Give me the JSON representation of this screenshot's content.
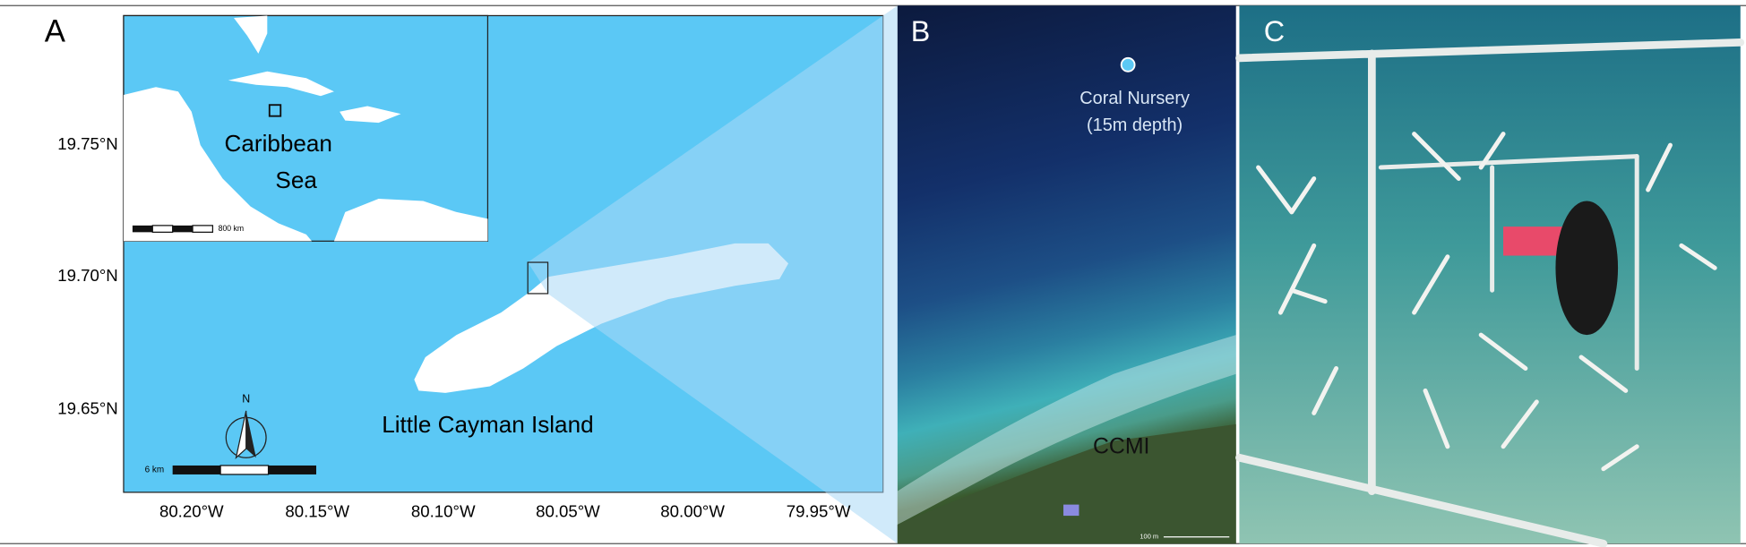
{
  "panels": [
    {
      "label": "A",
      "latitude_labels": [
        "19.75°N",
        "19.70°N",
        "19.65°N"
      ],
      "longitude_labels": [
        "80.20°W",
        "80.15°W",
        "80.10°W",
        "80.05°W",
        "80.00°W",
        "79.95°W"
      ],
      "place_label": "Little Cayman Island",
      "north_label": "N",
      "scale_label": "6 km",
      "inset": {
        "labels": [
          "Caribbean",
          "Sea"
        ],
        "scale_label": "800 km"
      }
    },
    {
      "label": "B",
      "labels": [
        "Coral Nursery",
        "(15m depth)",
        "CCMI"
      ],
      "scale_label": "100 m"
    },
    {
      "label": "C"
    }
  ]
}
